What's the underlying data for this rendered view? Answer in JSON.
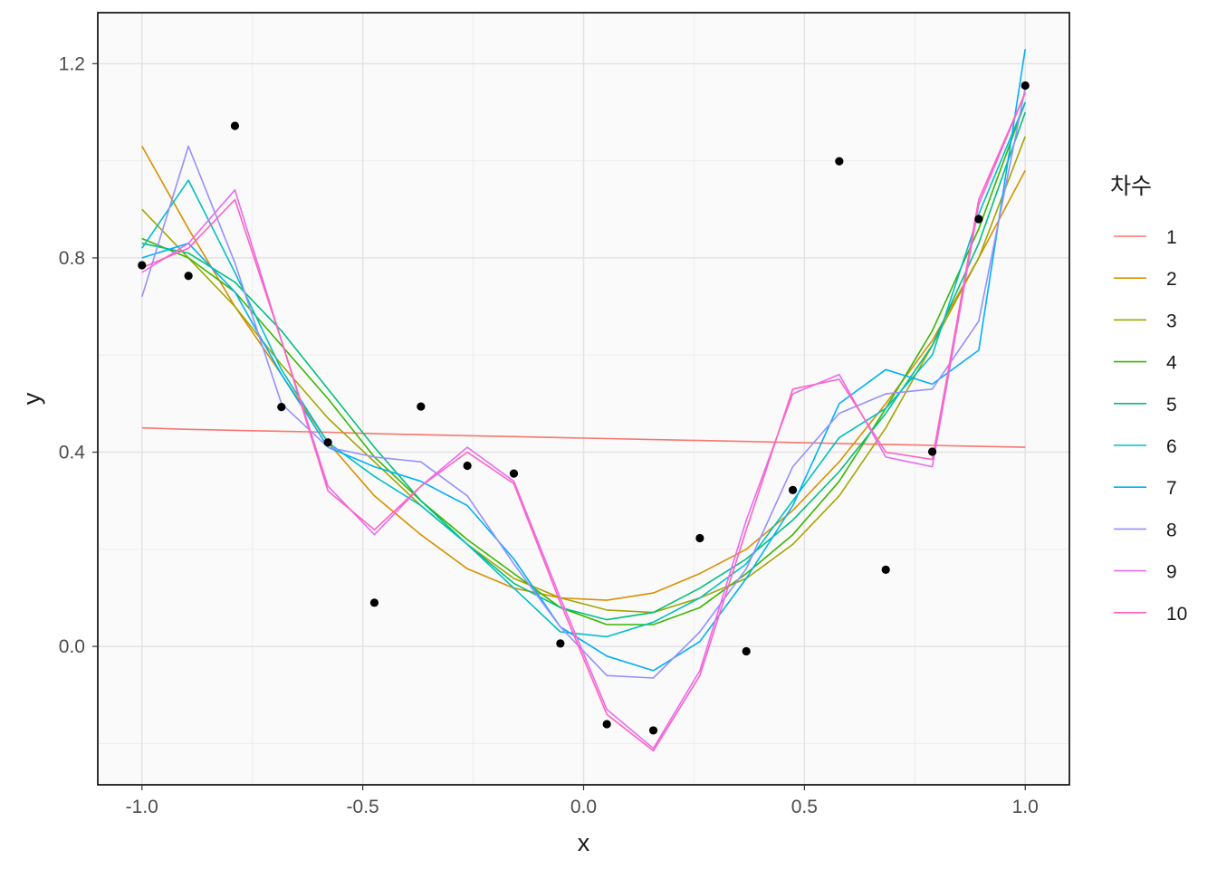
{
  "chart_data": {
    "type": "line",
    "xlabel": "x",
    "ylabel": "y",
    "xlim": [
      -1.1,
      1.1
    ],
    "ylim": [
      -0.285,
      1.305
    ],
    "x_ticks": [
      -1.0,
      -0.5,
      0.0,
      0.5,
      1.0
    ],
    "x_tick_labels": [
      "-1.0",
      "-0.5",
      "0.0",
      "0.5",
      "1.0"
    ],
    "y_ticks": [
      0.0,
      0.4,
      0.8,
      1.2
    ],
    "y_tick_labels": [
      "0.0",
      "0.4",
      "0.8",
      "1.2"
    ],
    "grid": true,
    "panel_background": "#fafafa",
    "legend": {
      "title": "차수",
      "position": "right"
    },
    "x": [
      -1.0,
      -0.8947,
      -0.7895,
      -0.6842,
      -0.5789,
      -0.4737,
      -0.3684,
      -0.2632,
      -0.1579,
      -0.0526,
      0.0526,
      0.1579,
      0.2632,
      0.3684,
      0.4737,
      0.5789,
      0.6842,
      0.7895,
      0.8947,
      1.0
    ],
    "points": {
      "color": "#000000",
      "y": [
        0.785,
        0.763,
        1.072,
        0.493,
        0.42,
        0.09,
        0.494,
        0.372,
        0.356,
        0.006,
        -0.16,
        -0.173,
        0.223,
        -0.01,
        0.322,
        0.999,
        0.158,
        0.401,
        0.88,
        1.155
      ]
    },
    "series": [
      {
        "name": "1",
        "color": "#F8766D",
        "y": [
          0.45,
          0.447,
          0.445,
          0.443,
          0.441,
          0.438,
          0.436,
          0.434,
          0.432,
          0.43,
          0.428,
          0.426,
          0.424,
          0.422,
          0.42,
          0.418,
          0.416,
          0.414,
          0.412,
          0.41
        ]
      },
      {
        "name": "2",
        "color": "#D89000",
        "y": [
          1.03,
          0.86,
          0.7,
          0.56,
          0.42,
          0.31,
          0.23,
          0.16,
          0.12,
          0.1,
          0.095,
          0.11,
          0.15,
          0.2,
          0.28,
          0.38,
          0.5,
          0.63,
          0.8,
          0.98
        ]
      },
      {
        "name": "3",
        "color": "#A3A500",
        "y": [
          0.9,
          0.8,
          0.7,
          0.58,
          0.47,
          0.38,
          0.29,
          0.21,
          0.14,
          0.1,
          0.075,
          0.07,
          0.1,
          0.14,
          0.21,
          0.31,
          0.45,
          0.62,
          0.8,
          1.05
        ]
      },
      {
        "name": "4",
        "color": "#39B600",
        "y": [
          0.84,
          0.8,
          0.73,
          0.62,
          0.51,
          0.39,
          0.3,
          0.22,
          0.15,
          0.08,
          0.045,
          0.045,
          0.08,
          0.15,
          0.23,
          0.34,
          0.49,
          0.65,
          0.86,
          1.12
        ]
      },
      {
        "name": "5",
        "color": "#00BF7D",
        "y": [
          0.83,
          0.81,
          0.75,
          0.65,
          0.53,
          0.41,
          0.3,
          0.21,
          0.13,
          0.08,
          0.055,
          0.07,
          0.12,
          0.18,
          0.26,
          0.36,
          0.48,
          0.62,
          0.83,
          1.1
        ]
      },
      {
        "name": "6",
        "color": "#00BFC4",
        "y": [
          0.82,
          0.96,
          0.77,
          0.57,
          0.42,
          0.35,
          0.29,
          0.21,
          0.12,
          0.03,
          0.02,
          0.05,
          0.1,
          0.17,
          0.3,
          0.43,
          0.49,
          0.6,
          0.89,
          1.12
        ]
      },
      {
        "name": "7",
        "color": "#00B0F6",
        "y": [
          0.8,
          0.83,
          0.73,
          0.56,
          0.41,
          0.37,
          0.34,
          0.29,
          0.18,
          0.04,
          -0.02,
          -0.05,
          0.01,
          0.14,
          0.29,
          0.5,
          0.57,
          0.54,
          0.61,
          1.23
        ]
      },
      {
        "name": "8",
        "color": "#9590FF",
        "y": [
          0.72,
          1.03,
          0.79,
          0.5,
          0.41,
          0.39,
          0.38,
          0.31,
          0.17,
          0.04,
          -0.06,
          -0.065,
          0.03,
          0.16,
          0.37,
          0.48,
          0.52,
          0.53,
          0.67,
          1.15
        ]
      },
      {
        "name": "9",
        "color": "#E76BF3",
        "y": [
          0.77,
          0.83,
          0.94,
          0.63,
          0.33,
          0.23,
          0.33,
          0.41,
          0.34,
          0.1,
          -0.13,
          -0.21,
          -0.05,
          0.26,
          0.52,
          0.56,
          0.39,
          0.37,
          0.91,
          1.14
        ]
      },
      {
        "name": "10",
        "color": "#FF62BC",
        "y": [
          0.78,
          0.82,
          0.92,
          0.63,
          0.32,
          0.24,
          0.33,
          0.4,
          0.335,
          0.09,
          -0.14,
          -0.215,
          -0.06,
          0.24,
          0.53,
          0.55,
          0.4,
          0.385,
          0.92,
          1.14
        ]
      }
    ]
  }
}
